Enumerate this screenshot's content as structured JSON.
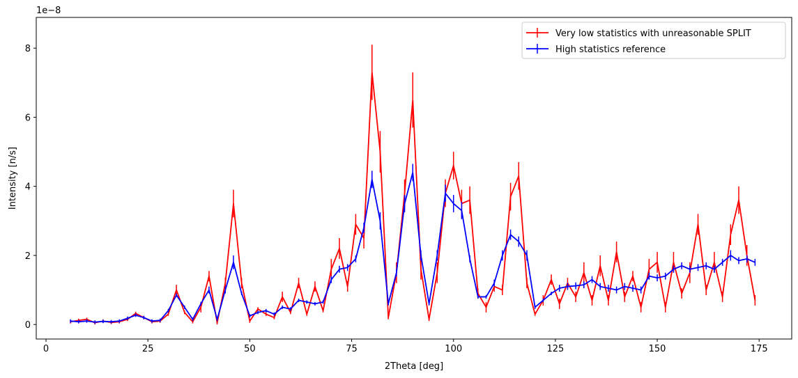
{
  "chart_data": {
    "type": "errorbar_line",
    "xlabel": "2Theta [deg]",
    "ylabel": "Intensity [n/s]",
    "offset_text": "1e−8",
    "xlim": [
      -2.4,
      183
    ],
    "ylim": [
      -0.42,
      8.89
    ],
    "xticks": [
      0,
      25,
      50,
      75,
      100,
      125,
      150,
      175
    ],
    "yticks": [
      0,
      2,
      4,
      6,
      8
    ],
    "legend": "upper right",
    "x": [
      6,
      8,
      10,
      12,
      14,
      16,
      18,
      20,
      22,
      24,
      26,
      28,
      30,
      32,
      34,
      36,
      38,
      40,
      42,
      44,
      46,
      48,
      50,
      52,
      54,
      56,
      58,
      60,
      62,
      64,
      66,
      68,
      70,
      72,
      74,
      76,
      78,
      80,
      82,
      84,
      86,
      88,
      90,
      92,
      94,
      96,
      98,
      100,
      102,
      104,
      106,
      108,
      110,
      112,
      114,
      116,
      118,
      120,
      122,
      124,
      126,
      128,
      130,
      132,
      134,
      136,
      138,
      140,
      142,
      144,
      146,
      148,
      150,
      152,
      154,
      156,
      158,
      160,
      162,
      164,
      166,
      168,
      170,
      172,
      174
    ],
    "series": [
      {
        "name": "Very low statistics with unreasonable SPLIT",
        "color": "#ff0000",
        "values": [
          0.08,
          0.12,
          0.15,
          0.05,
          0.1,
          0.06,
          0.08,
          0.15,
          0.32,
          0.2,
          0.08,
          0.1,
          0.3,
          1.0,
          0.35,
          0.08,
          0.5,
          1.4,
          0.05,
          1.2,
          3.5,
          1.2,
          0.1,
          0.45,
          0.3,
          0.2,
          0.8,
          0.35,
          1.2,
          0.3,
          1.1,
          0.4,
          1.6,
          2.2,
          1.1,
          2.9,
          2.5,
          7.3,
          5.0,
          0.2,
          1.5,
          3.8,
          6.5,
          1.6,
          0.15,
          1.5,
          3.8,
          4.6,
          3.5,
          3.6,
          0.9,
          0.5,
          1.1,
          1.0,
          3.7,
          4.3,
          1.2,
          0.3,
          0.7,
          1.3,
          0.6,
          1.2,
          0.8,
          1.5,
          0.7,
          1.7,
          0.7,
          2.1,
          0.8,
          1.4,
          0.5,
          1.6,
          1.8,
          0.5,
          1.8,
          0.9,
          1.5,
          2.9,
          1.0,
          1.8,
          0.8,
          2.6,
          3.6,
          2.0,
          0.7
        ],
        "errors": [
          0.05,
          0.05,
          0.05,
          0.05,
          0.05,
          0.05,
          0.05,
          0.05,
          0.05,
          0.05,
          0.05,
          0.05,
          0.05,
          0.15,
          0.05,
          0.05,
          0.15,
          0.15,
          0.05,
          0.15,
          0.4,
          0.15,
          0.05,
          0.05,
          0.05,
          0.05,
          0.15,
          0.05,
          0.15,
          0.05,
          0.15,
          0.05,
          0.3,
          0.3,
          0.15,
          0.3,
          0.3,
          0.8,
          0.6,
          0.05,
          0.3,
          0.4,
          0.8,
          0.3,
          0.05,
          0.3,
          0.4,
          0.4,
          0.4,
          0.4,
          0.15,
          0.15,
          0.15,
          0.15,
          0.4,
          0.4,
          0.15,
          0.05,
          0.15,
          0.15,
          0.15,
          0.15,
          0.15,
          0.3,
          0.15,
          0.3,
          0.15,
          0.3,
          0.15,
          0.15,
          0.15,
          0.3,
          0.3,
          0.15,
          0.3,
          0.15,
          0.3,
          0.3,
          0.15,
          0.3,
          0.15,
          0.3,
          0.4,
          0.3,
          0.15
        ]
      },
      {
        "name": "High statistics reference",
        "color": "#0000ff",
        "values": [
          0.1,
          0.08,
          0.1,
          0.07,
          0.09,
          0.08,
          0.1,
          0.18,
          0.27,
          0.2,
          0.1,
          0.12,
          0.4,
          0.85,
          0.5,
          0.15,
          0.6,
          1.0,
          0.15,
          1.0,
          1.8,
          0.9,
          0.25,
          0.35,
          0.4,
          0.3,
          0.5,
          0.45,
          0.7,
          0.65,
          0.6,
          0.65,
          1.3,
          1.6,
          1.65,
          1.9,
          2.8,
          4.2,
          3.0,
          0.6,
          1.5,
          3.5,
          4.4,
          2.0,
          0.6,
          2.0,
          3.8,
          3.5,
          3.3,
          1.9,
          0.8,
          0.8,
          1.2,
          2.0,
          2.6,
          2.4,
          2.0,
          0.5,
          0.7,
          0.9,
          1.05,
          1.1,
          1.12,
          1.15,
          1.3,
          1.1,
          1.05,
          1.0,
          1.1,
          1.05,
          1.0,
          1.4,
          1.35,
          1.4,
          1.6,
          1.7,
          1.6,
          1.65,
          1.7,
          1.6,
          1.8,
          2.0,
          1.85,
          1.9,
          1.8
        ],
        "errors": [
          0.05,
          0.05,
          0.05,
          0.05,
          0.05,
          0.05,
          0.05,
          0.05,
          0.05,
          0.05,
          0.05,
          0.05,
          0.05,
          0.05,
          0.05,
          0.05,
          0.05,
          0.1,
          0.05,
          0.1,
          0.2,
          0.05,
          0.05,
          0.05,
          0.05,
          0.05,
          0.05,
          0.05,
          0.05,
          0.05,
          0.05,
          0.05,
          0.1,
          0.1,
          0.1,
          0.1,
          0.15,
          0.25,
          0.25,
          0.05,
          0.1,
          0.25,
          0.25,
          0.15,
          0.05,
          0.15,
          0.25,
          0.25,
          0.25,
          0.1,
          0.05,
          0.05,
          0.1,
          0.15,
          0.15,
          0.15,
          0.15,
          0.05,
          0.05,
          0.05,
          0.1,
          0.1,
          0.1,
          0.1,
          0.1,
          0.1,
          0.1,
          0.1,
          0.1,
          0.1,
          0.1,
          0.1,
          0.1,
          0.1,
          0.1,
          0.1,
          0.1,
          0.1,
          0.1,
          0.1,
          0.1,
          0.15,
          0.1,
          0.1,
          0.1
        ]
      }
    ]
  }
}
